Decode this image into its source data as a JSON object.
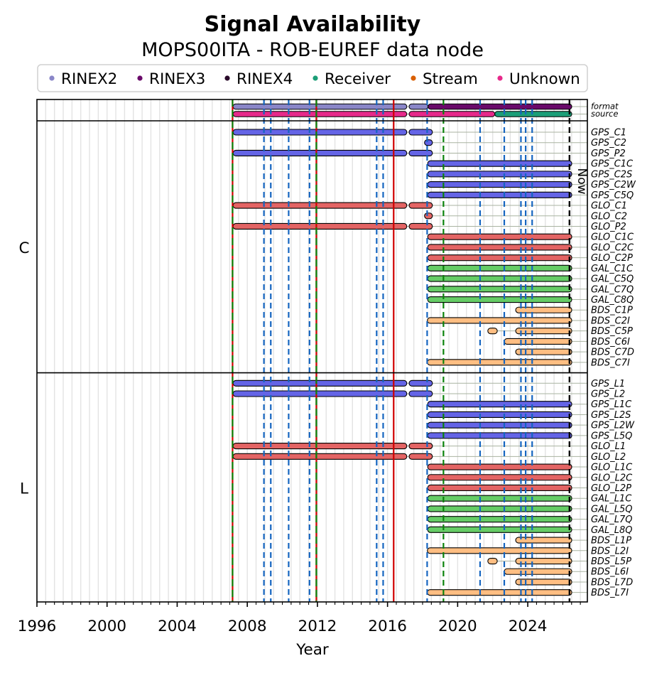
{
  "chart_data": {
    "type": "bar",
    "orientation": "horizontal-range",
    "title": "Signal Availability",
    "subtitle": "MOPS00ITA - ROB-EUREF data node",
    "xlabel": "Year",
    "ylabel": "",
    "xlim": [
      1996,
      2027.4
    ],
    "xticks": [
      1996,
      2000,
      2004,
      2008,
      2012,
      2016,
      2020,
      2024
    ],
    "xtick_labels": [
      "1996",
      "2000",
      "2004",
      "2008",
      "2012",
      "2016",
      "2020",
      "2024"
    ],
    "minor_tick_step": 0.5,
    "grid": true,
    "legend": {
      "placement": "top",
      "entries": [
        {
          "label": "RINEX2",
          "color": "#8a86c8"
        },
        {
          "label": "RINEX3",
          "color": "#6a0a6a"
        },
        {
          "label": "RINEX4",
          "color": "#2a0a2a"
        },
        {
          "label": "Receiver",
          "color": "#1b9e77"
        },
        {
          "label": "Stream",
          "color": "#d95f02"
        },
        {
          "label": "Unknown",
          "color": "#e7298a"
        }
      ]
    },
    "system_colors": {
      "GPS": "#6464e6",
      "GLO": "#e36464",
      "GAL": "#66cc66",
      "BDS": "#ffbe82"
    },
    "meta_rows": [
      {
        "name": "format",
        "segments": [
          {
            "start": 2007.19,
            "end": 2017.1,
            "category": "RINEX2"
          },
          {
            "start": 2017.23,
            "end": 2018.31,
            "category": "RINEX2"
          },
          {
            "start": 2018.31,
            "end": 2026.51,
            "category": "RINEX3"
          }
        ]
      },
      {
        "name": "source",
        "segments": [
          {
            "start": 2007.19,
            "end": 2017.1,
            "category": "Unknown"
          },
          {
            "start": 2017.23,
            "end": 2022.12,
            "category": "Unknown"
          },
          {
            "start": 2022.12,
            "end": 2026.51,
            "category": "Receiver"
          }
        ]
      }
    ],
    "groups": [
      {
        "label": "C",
        "rows": [
          {
            "name": "GPS_C1",
            "system": "GPS",
            "segments": [
              [
                2007.19,
                2017.1
              ],
              [
                2017.23,
                2018.56
              ]
            ]
          },
          {
            "name": "GPS_C2",
            "system": "GPS",
            "segments": [
              [
                2018.11,
                2018.56
              ]
            ]
          },
          {
            "name": "GPS_P2",
            "system": "GPS",
            "segments": [
              [
                2007.19,
                2017.1
              ],
              [
                2017.23,
                2018.56
              ]
            ]
          },
          {
            "name": "GPS_C1C",
            "system": "GPS",
            "segments": [
              [
                2018.29,
                2026.51
              ]
            ]
          },
          {
            "name": "GPS_C2S",
            "system": "GPS",
            "segments": [
              [
                2018.29,
                2026.51
              ]
            ]
          },
          {
            "name": "GPS_C2W",
            "system": "GPS",
            "segments": [
              [
                2018.29,
                2026.51
              ]
            ]
          },
          {
            "name": "GPS_C5Q",
            "system": "GPS",
            "segments": [
              [
                2018.29,
                2026.51
              ]
            ]
          },
          {
            "name": "GLO_C1",
            "system": "GLO",
            "segments": [
              [
                2007.19,
                2017.1
              ],
              [
                2017.23,
                2018.56
              ]
            ]
          },
          {
            "name": "GLO_C2",
            "system": "GLO",
            "segments": [
              [
                2018.11,
                2018.56
              ]
            ]
          },
          {
            "name": "GLO_P2",
            "system": "GLO",
            "segments": [
              [
                2007.19,
                2017.1
              ],
              [
                2017.23,
                2018.56
              ]
            ]
          },
          {
            "name": "GLO_C1C",
            "system": "GLO",
            "segments": [
              [
                2018.29,
                2026.51
              ]
            ]
          },
          {
            "name": "GLO_C2C",
            "system": "GLO",
            "segments": [
              [
                2018.29,
                2026.51
              ]
            ]
          },
          {
            "name": "GLO_C2P",
            "system": "GLO",
            "segments": [
              [
                2018.29,
                2026.51
              ]
            ]
          },
          {
            "name": "GAL_C1C",
            "system": "GAL",
            "segments": [
              [
                2018.29,
                2026.51
              ]
            ]
          },
          {
            "name": "GAL_C5Q",
            "system": "GAL",
            "segments": [
              [
                2018.29,
                2026.51
              ]
            ]
          },
          {
            "name": "GAL_C7Q",
            "system": "GAL",
            "segments": [
              [
                2018.29,
                2026.51
              ]
            ]
          },
          {
            "name": "GAL_C8Q",
            "system": "GAL",
            "segments": [
              [
                2018.29,
                2026.51
              ]
            ]
          },
          {
            "name": "BDS_C1P",
            "system": "BDS",
            "segments": [
              [
                2023.31,
                2026.51
              ]
            ]
          },
          {
            "name": "BDS_C2I",
            "system": "BDS",
            "segments": [
              [
                2018.27,
                2026.51
              ]
            ]
          },
          {
            "name": "BDS_C5P",
            "system": "BDS",
            "segments": [
              [
                2021.72,
                2022.26
              ],
              [
                2023.31,
                2026.51
              ]
            ]
          },
          {
            "name": "BDS_C6I",
            "system": "BDS",
            "segments": [
              [
                2022.66,
                2026.51
              ]
            ]
          },
          {
            "name": "BDS_C7D",
            "system": "BDS",
            "segments": [
              [
                2023.31,
                2026.51
              ]
            ]
          },
          {
            "name": "BDS_C7I",
            "system": "BDS",
            "segments": [
              [
                2018.27,
                2026.51
              ]
            ]
          }
        ]
      },
      {
        "label": "L",
        "rows": [
          {
            "name": "GPS_L1",
            "system": "GPS",
            "segments": [
              [
                2007.19,
                2017.1
              ],
              [
                2017.23,
                2018.56
              ]
            ]
          },
          {
            "name": "GPS_L2",
            "system": "GPS",
            "segments": [
              [
                2007.19,
                2017.1
              ],
              [
                2017.23,
                2018.56
              ]
            ]
          },
          {
            "name": "GPS_L1C",
            "system": "GPS",
            "segments": [
              [
                2018.29,
                2026.51
              ]
            ]
          },
          {
            "name": "GPS_L2S",
            "system": "GPS",
            "segments": [
              [
                2018.29,
                2026.51
              ]
            ]
          },
          {
            "name": "GPS_L2W",
            "system": "GPS",
            "segments": [
              [
                2018.29,
                2026.51
              ]
            ]
          },
          {
            "name": "GPS_L5Q",
            "system": "GPS",
            "segments": [
              [
                2018.29,
                2026.51
              ]
            ]
          },
          {
            "name": "GLO_L1",
            "system": "GLO",
            "segments": [
              [
                2007.19,
                2017.1
              ],
              [
                2017.23,
                2018.56
              ]
            ]
          },
          {
            "name": "GLO_L2",
            "system": "GLO",
            "segments": [
              [
                2007.19,
                2017.1
              ],
              [
                2017.23,
                2018.56
              ]
            ]
          },
          {
            "name": "GLO_L1C",
            "system": "GLO",
            "segments": [
              [
                2018.29,
                2026.51
              ]
            ]
          },
          {
            "name": "GLO_L2C",
            "system": "GLO",
            "segments": [
              [
                2018.29,
                2026.51
              ]
            ]
          },
          {
            "name": "GLO_L2P",
            "system": "GLO",
            "segments": [
              [
                2018.29,
                2026.51
              ]
            ]
          },
          {
            "name": "GAL_L1C",
            "system": "GAL",
            "segments": [
              [
                2018.29,
                2026.51
              ]
            ]
          },
          {
            "name": "GAL_L5Q",
            "system": "GAL",
            "segments": [
              [
                2018.29,
                2026.51
              ]
            ]
          },
          {
            "name": "GAL_L7Q",
            "system": "GAL",
            "segments": [
              [
                2018.29,
                2026.51
              ]
            ]
          },
          {
            "name": "GAL_L8Q",
            "system": "GAL",
            "segments": [
              [
                2018.29,
                2026.51
              ]
            ]
          },
          {
            "name": "BDS_L1P",
            "system": "BDS",
            "segments": [
              [
                2023.31,
                2026.51
              ]
            ]
          },
          {
            "name": "BDS_L2I",
            "system": "BDS",
            "segments": [
              [
                2018.27,
                2026.51
              ]
            ]
          },
          {
            "name": "BDS_L5P",
            "system": "BDS",
            "segments": [
              [
                2021.72,
                2022.26
              ],
              [
                2023.31,
                2026.51
              ]
            ]
          },
          {
            "name": "BDS_L6I",
            "system": "BDS",
            "segments": [
              [
                2022.66,
                2026.51
              ]
            ]
          },
          {
            "name": "BDS_L7D",
            "system": "BDS",
            "segments": [
              [
                2023.31,
                2026.51
              ]
            ]
          },
          {
            "name": "BDS_L7I",
            "system": "BDS",
            "segments": [
              [
                2018.27,
                2026.51
              ]
            ]
          }
        ]
      }
    ],
    "events": [
      {
        "year": 2007.16,
        "style": "red-green-dashed"
      },
      {
        "year": 2008.95,
        "style": "blue-dashed"
      },
      {
        "year": 2009.34,
        "style": "blue-dashed"
      },
      {
        "year": 2010.36,
        "style": "blue-dashed"
      },
      {
        "year": 2011.55,
        "style": "blue-dashed"
      },
      {
        "year": 2011.94,
        "style": "red-green-dashed"
      },
      {
        "year": 2015.38,
        "style": "blue-dashed"
      },
      {
        "year": 2015.75,
        "style": "blue-dashed"
      },
      {
        "year": 2016.35,
        "style": "red-solid"
      },
      {
        "year": 2018.26,
        "style": "blue-dashed"
      },
      {
        "year": 2019.19,
        "style": "green-dashed"
      },
      {
        "year": 2021.28,
        "style": "blue-dashed"
      },
      {
        "year": 2022.66,
        "style": "blue-dashed"
      },
      {
        "year": 2023.61,
        "style": "blue-dashed"
      },
      {
        "year": 2023.88,
        "style": "blue-dashed"
      },
      {
        "year": 2024.25,
        "style": "blue-dashed"
      }
    ],
    "event_colors": {
      "red": "#d00000",
      "green": "#0a820a",
      "blue": "#1565c0",
      "now": "#000000"
    },
    "now": {
      "year": 2026.38,
      "label": "Now"
    }
  }
}
